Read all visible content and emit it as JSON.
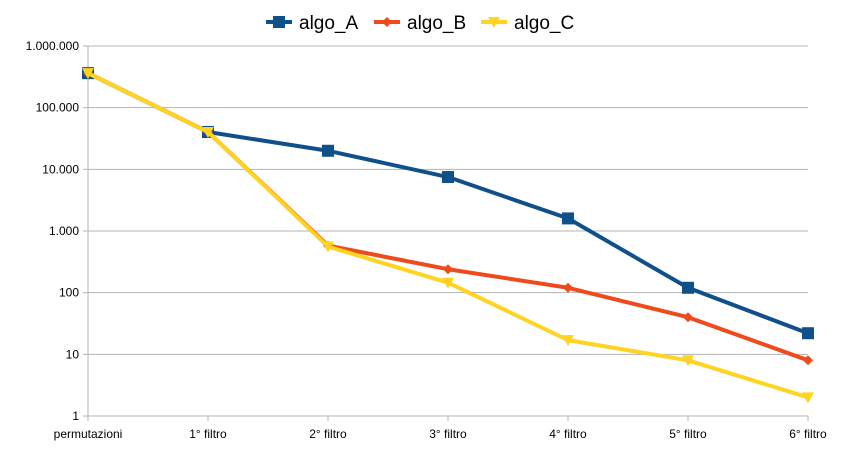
{
  "chart_data": {
    "type": "line",
    "title": "",
    "xlabel": "",
    "ylabel": "",
    "y_scale": "log10",
    "ylim": [
      1,
      1000000
    ],
    "grid": "horizontal-major",
    "legend_position": "top",
    "categories": [
      "permutazioni",
      "1° filtro",
      "2° filtro",
      "3° filtro",
      "4° filtro",
      "5° filtro",
      "6° filtro"
    ],
    "y_tick_labels": [
      "1",
      "10",
      "100",
      "1.000",
      "10.000",
      "100.000",
      "1.000.000"
    ],
    "y_tick_values": [
      1,
      10,
      100,
      1000,
      10000,
      100000,
      1000000
    ],
    "series": [
      {
        "name": "algo_A",
        "color": "#0f4f8a",
        "marker": "square",
        "values": [
          362880,
          40320,
          20000,
          7500,
          1600,
          120,
          22
        ]
      },
      {
        "name": "algo_B",
        "color": "#ee4a1b",
        "marker": "diamond",
        "values": [
          362880,
          40320,
          580,
          240,
          120,
          40,
          8
        ]
      },
      {
        "name": "algo_C",
        "color": "#ffd320",
        "marker": "triangle-down",
        "values": [
          362880,
          40320,
          560,
          145,
          17,
          8,
          2
        ]
      }
    ]
  }
}
